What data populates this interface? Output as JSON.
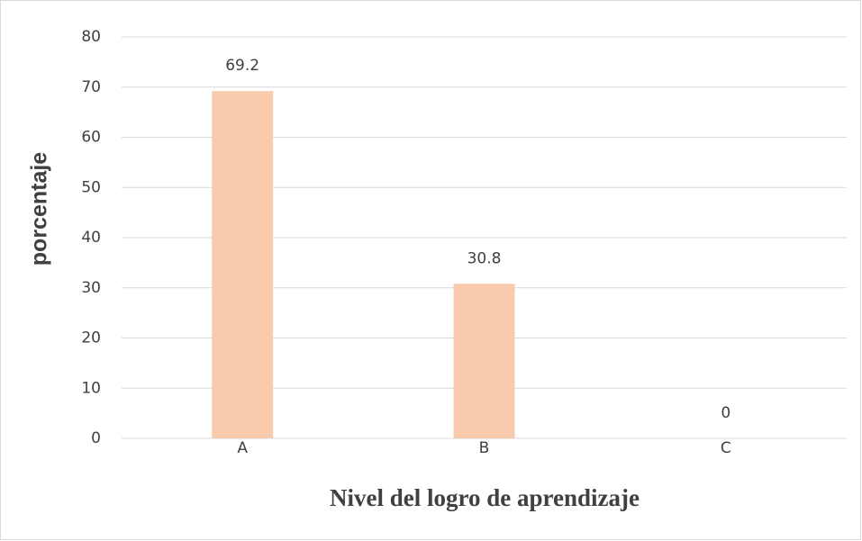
{
  "chart_data": {
    "type": "bar",
    "categories": [
      "A",
      "B",
      "C"
    ],
    "values": [
      69.2,
      30.8,
      0
    ],
    "color": "#f8cbad",
    "ylim": [
      0,
      80
    ],
    "yticks": [
      0,
      10,
      20,
      30,
      40,
      50,
      60,
      70,
      80
    ],
    "grid": true,
    "xlabel": "Nivel del logro de aprendizaje",
    "ylabel": "porcentaje"
  }
}
